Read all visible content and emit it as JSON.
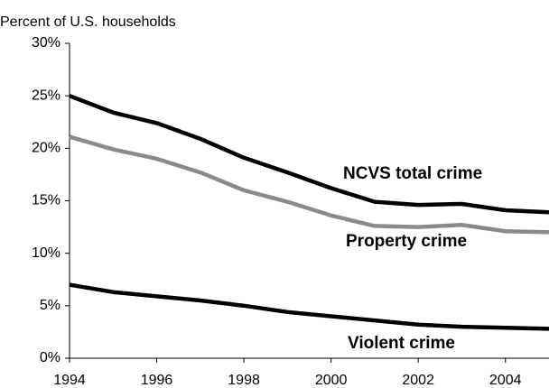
{
  "chart_data": {
    "type": "line",
    "y_axis_label": "Percent of U.S. households",
    "x": [
      1994,
      1995,
      1996,
      1997,
      1998,
      1999,
      2000,
      2001,
      2002,
      2003,
      2004,
      2005
    ],
    "series": [
      {
        "name": "NCVS total crime",
        "color": "#000000",
        "values": [
          25.0,
          23.4,
          22.4,
          20.9,
          19.1,
          17.7,
          16.2,
          14.9,
          14.6,
          14.7,
          14.1,
          13.9
        ]
      },
      {
        "name": "Property crime",
        "color": "#8a8a8a",
        "values": [
          21.1,
          19.9,
          19.0,
          17.7,
          16.0,
          14.9,
          13.6,
          12.6,
          12.5,
          12.7,
          12.1,
          12.0
        ]
      },
      {
        "name": "Violent crime",
        "color": "#000000",
        "values": [
          7.0,
          6.3,
          5.9,
          5.5,
          5.0,
          4.4,
          4.0,
          3.6,
          3.2,
          3.0,
          2.9,
          2.8
        ]
      }
    ],
    "xlim": [
      1994,
      2005
    ],
    "xticks": [
      1994,
      1996,
      1998,
      2000,
      2002,
      2004
    ],
    "ylim": [
      0,
      30
    ],
    "yticks": [
      {
        "value": 0,
        "label": "0%"
      },
      {
        "value": 5,
        "label": "5%"
      },
      {
        "value": 10,
        "label": "10%"
      },
      {
        "value": 15,
        "label": "15%"
      },
      {
        "value": 20,
        "label": "20%"
      },
      {
        "value": 25,
        "label": "25%"
      },
      {
        "value": 30,
        "label": "30%"
      }
    ],
    "grid": false
  }
}
